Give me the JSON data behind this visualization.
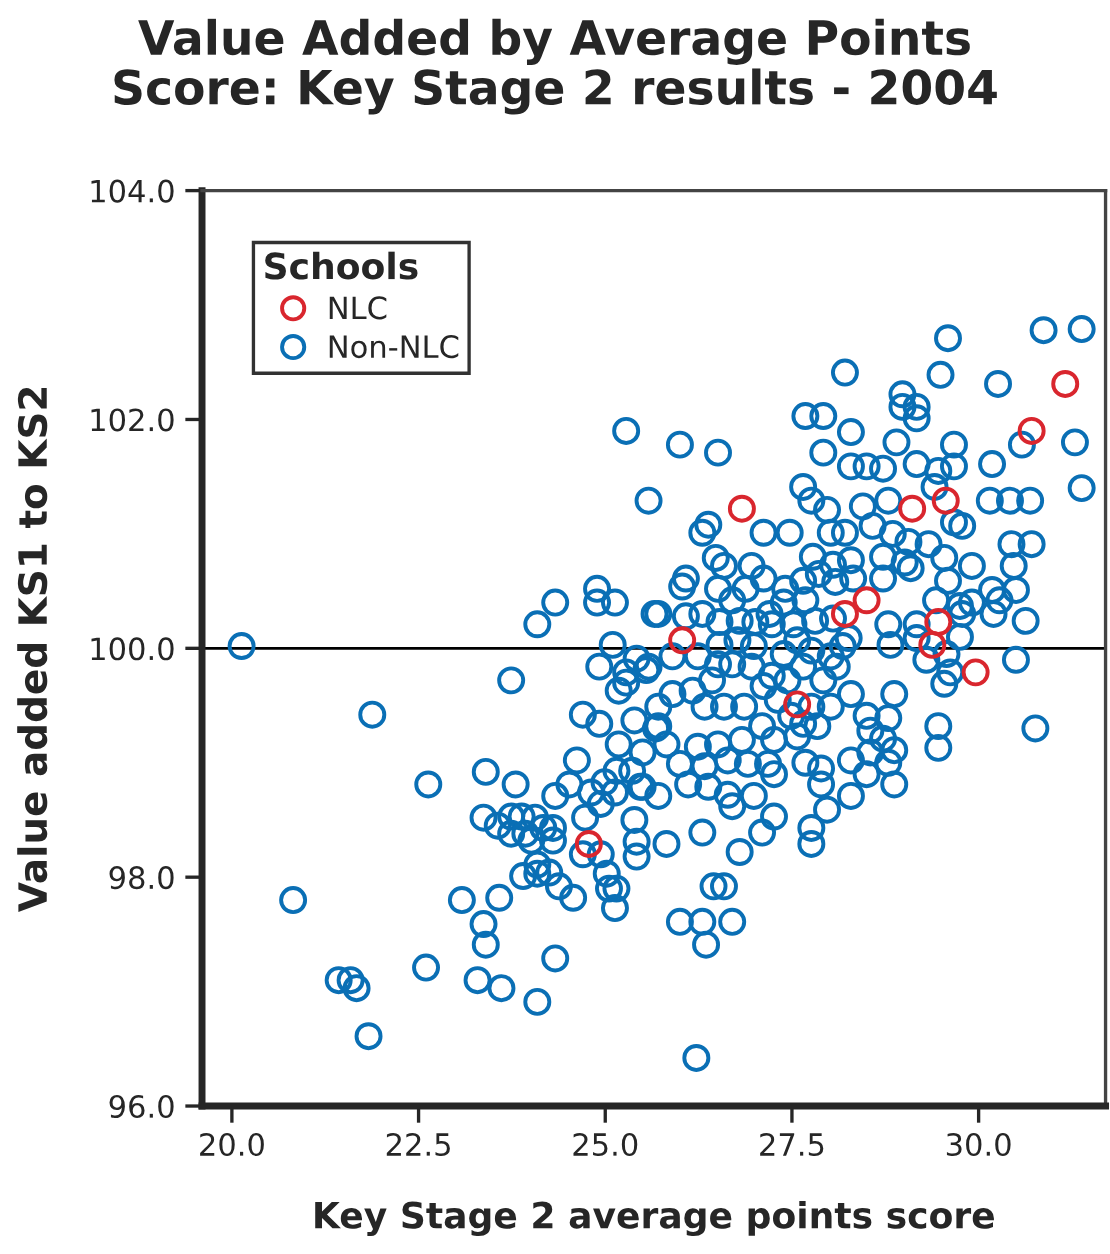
{
  "chart_data": {
    "type": "scatter",
    "title": "Value Added by Average Points\nScore: Key Stage 2 results - 2004",
    "xlabel": "Key Stage 2 average points score",
    "ylabel": "Value added KS1 to KS2",
    "legend_title": "Schools",
    "xlim": [
      19.6,
      31.7
    ],
    "xticks": [
      {
        "value": 20,
        "label": "20.0"
      },
      22.5,
      {
        "value": 25,
        "label": "25.0"
      },
      27.5,
      {
        "value": 30,
        "label": "30.0"
      }
    ],
    "ylim": [
      96.0,
      104.0
    ],
    "yticks": [
      {
        "value": 96,
        "label": "96.0"
      },
      {
        "value": 98,
        "label": "98.0"
      },
      {
        "value": 100,
        "label": "100.0"
      },
      {
        "value": 102,
        "label": "102.0"
      },
      {
        "value": 104,
        "label": "104.0"
      }
    ],
    "grid": false,
    "legend": "top left",
    "marker": "circle",
    "ref_lines": [
      {
        "axis": "y",
        "value": 100.0,
        "color": "#000000"
      }
    ],
    "series": [
      {
        "name": "NLC",
        "color": "#d9262e",
        "x": [
          26.03,
          26.83,
          24.78,
          29.11,
          29.56,
          28.21,
          28.5,
          27.57,
          29.46,
          29.38,
          29.96,
          30.71,
          31.16
        ],
        "values": [
          100.07,
          101.22,
          98.29,
          101.22,
          101.29,
          100.3,
          100.42,
          99.51,
          100.23,
          100.03,
          99.79,
          101.9,
          102.31
        ]
      },
      {
        "name": "Non-NLC",
        "color": "#0a6fb5",
        "x": [
          25.28,
          25.58,
          24.09,
          24.33,
          24.89,
          24.89,
          25.13,
          25.66,
          20.13,
          25.1,
          31.38,
          30.87,
          29.59,
          28.21,
          29.49,
          30.26,
          28.98,
          28.98,
          29.17,
          29.17,
          27.68,
          27.92,
          28.29,
          26.0,
          26.51,
          28.9,
          29.67,
          31.29,
          30.58,
          27.92,
          31.38,
          28.29,
          28.5,
          28.72,
          29.17,
          29.46,
          29.67,
          30.18,
          27.65,
          27.76,
          27.97,
          28.45,
          28.79,
          29.41,
          30.15,
          30.42,
          30.69,
          26.38,
          26.3,
          27.12,
          27.47,
          28.02,
          28.21,
          28.58,
          28.85,
          29.06,
          29.33,
          29.67,
          29.78,
          30.44,
          30.71,
          26.48,
          26.59,
          26.96,
          27.78,
          28.05,
          28.29,
          28.72,
          29.01,
          29.54,
          29.91,
          30.47,
          26.03,
          26.08,
          26.51,
          26.88,
          27.12,
          27.41,
          27.65,
          27.86,
          28.08,
          28.32,
          28.72,
          29.09,
          29.59,
          30.18,
          30.5,
          25.71,
          26.08,
          26.3,
          26.7,
          27.2,
          27.39,
          27.68,
          27.81,
          28.05,
          28.79,
          29.17,
          29.43,
          29.75,
          29.91,
          30.28,
          30.2,
          29.78,
          29.75,
          26.53,
          26.8,
          27.01,
          27.23,
          27.52,
          28.26,
          26.53,
          26.77,
          27.57,
          28.82,
          29.17,
          23.74,
          21.88,
          24.7,
          24.62,
          22.63,
          23.4,
          23.8,
          24.52,
          24.33,
          24.81,
          24.99,
          25.15,
          25.36,
          25.47,
          25.13,
          24.94,
          23.37,
          23.56,
          23.74,
          23.88,
          24.06,
          23.74,
          23.93,
          24.01,
          24.17,
          24.3,
          24.3,
          24.73,
          24.7,
          24.94,
          25.42,
          25.42,
          24.09,
          23.9,
          24.09,
          24.25,
          24.38,
          24.57,
          25.02,
          25.05,
          25.15,
          25.13,
          20.82,
          23.08,
          23.58,
          23.37,
          23.4,
          24.33,
          22.6,
          23.29,
          23.61,
          24.09,
          21.43,
          21.59,
          21.67,
          21.83,
          25.28,
          25.28,
          25.42,
          25.55,
          25.71,
          25.68,
          30.76,
          29.46,
          29.46,
          29.54,
          29.62,
          29.57,
          29.3,
          28.87,
          28.79,
          28.72,
          28.87,
          28.87,
          28.79,
          28.55,
          28.5,
          28.55,
          28.29,
          28.5,
          28.29,
          27.97,
          27.89,
          27.89,
          27.68,
          27.76,
          27.76,
          27.26,
          27.1,
          26.8,
          26.3,
          25.82,
          26.45,
          26.59,
          26.0,
          26.3,
          26.7,
          26.35,
          26.22,
          25.71,
          25.5,
          25.9,
          25.71,
          25.82,
          26.0,
          26.11,
          26.38,
          26.64,
          26.7,
          26.99,
          27.26,
          27.18,
          26.91,
          26.64,
          26.33,
          26.24,
          26.51,
          26.83,
          27.1,
          27.26,
          27.57,
          27.84,
          28.02,
          27.76,
          27.49,
          27.31,
          27.12,
          26.86,
          26.59,
          26.33,
          26.17,
          26.43,
          26.7,
          26.96,
          27.23,
          27.44,
          27.65,
          27.92,
          28.1,
          28.29,
          27.65,
          25.58,
          25.9,
          26.24,
          26.51,
          26.99,
          27.39,
          27.76,
          28.02,
          28.18,
          24.92,
          25.18,
          25.39,
          24.92,
          25.18,
          25.5,
          25.39,
          30.63,
          30.5
        ],
        "values": [
          101.9,
          101.29,
          100.21,
          100.4,
          100.52,
          100.4,
          100.4,
          100.3,
          100.02,
          100.03,
          102.79,
          102.78,
          102.71,
          102.41,
          102.39,
          102.31,
          102.22,
          102.11,
          102.11,
          102.01,
          102.03,
          102.03,
          101.89,
          101.78,
          101.71,
          101.8,
          101.78,
          101.8,
          101.78,
          101.71,
          101.4,
          101.59,
          101.59,
          101.57,
          101.61,
          101.55,
          101.59,
          101.61,
          101.41,
          101.29,
          101.21,
          101.24,
          101.29,
          101.41,
          101.29,
          101.29,
          101.29,
          101.08,
          101.01,
          101.01,
          101.01,
          101.01,
          101.01,
          101.07,
          101.0,
          100.93,
          100.91,
          101.1,
          101.07,
          100.91,
          100.91,
          100.79,
          100.72,
          100.72,
          100.8,
          100.73,
          100.77,
          100.8,
          100.75,
          100.79,
          100.72,
          100.72,
          100.54,
          100.61,
          100.52,
          100.52,
          100.61,
          100.52,
          100.59,
          100.65,
          100.58,
          100.61,
          100.61,
          100.7,
          100.59,
          100.51,
          100.51,
          100.3,
          100.28,
          100.3,
          100.42,
          100.3,
          100.4,
          100.42,
          100.24,
          100.26,
          100.21,
          100.21,
          100.42,
          100.37,
          100.4,
          100.42,
          100.3,
          100.3,
          100.1,
          100.23,
          100.24,
          100.23,
          100.21,
          100.21,
          100.09,
          100.03,
          100.07,
          100.07,
          100.03,
          100.09,
          99.72,
          99.42,
          99.42,
          99.02,
          98.81,
          98.92,
          98.81,
          98.81,
          98.71,
          98.74,
          98.83,
          98.93,
          98.93,
          98.79,
          98.74,
          98.64,
          98.52,
          98.45,
          98.53,
          98.53,
          98.52,
          98.38,
          98.38,
          98.32,
          98.43,
          98.43,
          98.32,
          98.52,
          98.2,
          98.2,
          98.31,
          98.18,
          98.11,
          98.01,
          98.03,
          98.04,
          97.92,
          97.82,
          98.03,
          97.9,
          97.9,
          97.73,
          97.8,
          97.8,
          97.82,
          97.59,
          97.41,
          97.29,
          97.21,
          97.1,
          97.03,
          96.91,
          97.1,
          97.1,
          97.03,
          96.61,
          99.79,
          99.7,
          99.91,
          99.81,
          99.49,
          99.3,
          99.3,
          99.32,
          99.13,
          99.69,
          99.79,
          99.95,
          99.9,
          99.6,
          99.39,
          99.21,
          99.11,
          98.81,
          99.0,
          99.09,
          99.41,
          99.28,
          99.02,
          98.9,
          98.71,
          98.59,
          98.95,
          98.81,
          99.0,
          98.43,
          98.29,
          98.53,
          98.39,
          98.22,
          98.39,
          98.29,
          97.92,
          97.92,
          97.61,
          97.61,
          97.61,
          97.41,
          96.42,
          98.71,
          98.79,
          99.6,
          99.32,
          99.16,
          98.99,
          98.81,
          98.79,
          98.72,
          98.62,
          98.71,
          98.9,
          98.99,
          98.99,
          99.02,
          98.97,
          99.14,
          99.16,
          99.2,
          99.32,
          99.2,
          99.23,
          99.32,
          99.49,
          99.49,
          99.41,
          99.55,
          99.67,
          99.49,
          99.49,
          99.49,
          99.63,
          99.72,
          99.86,
          99.84,
          99.76,
          99.72,
          99.84,
          99.72,
          99.84,
          99.6,
          99.34,
          99.84,
          99.93,
          99.93,
          99.86,
          100.02,
          99.95,
          99.98,
          99.93,
          100.02,
          99.84,
          99.63,
          99.37,
          99.34,
          99.16,
          99.09,
          98.5,
          100.24,
          99.9
        ]
      }
    ]
  }
}
